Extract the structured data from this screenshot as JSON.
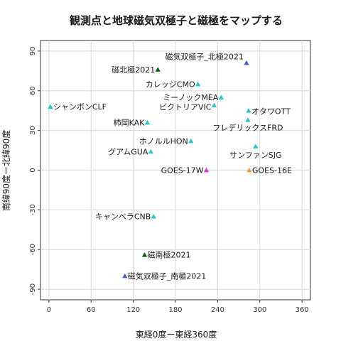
{
  "chart_data": {
    "type": "scatter",
    "title": "観測点と地球磁気双極子と磁極をマップする",
    "xlabel": "東経0度ー東経360度",
    "ylabel": "南緯90度ー北緯90度",
    "xlim": [
      -12,
      372
    ],
    "ylim": [
      -98,
      98
    ],
    "xticks": [
      0,
      60,
      120,
      180,
      240,
      300,
      360
    ],
    "yticks": [
      90,
      60,
      30,
      0,
      -30,
      -60,
      -90
    ],
    "xtick_labels": [
      "0",
      "60",
      "120",
      "180",
      "240",
      "300",
      "360"
    ],
    "ytick_labels": [
      "90",
      "60",
      "30",
      "0",
      "-30",
      "-60",
      "-90"
    ],
    "grid": true,
    "colors": {
      "station": "#22c8c8",
      "geo_pole": "#006400",
      "dipole_pole": "#3a5fcd",
      "goes_east": "#f0a030",
      "goes_west": "#e030e0",
      "grid": "#d8d8d8",
      "panel_border": "#333333"
    },
    "points": [
      {
        "x": 281,
        "y": 81,
        "label": "磁気双極子_北極2021",
        "kind": "dipole_pole",
        "anchor": "end",
        "dx": -4,
        "dy": -5
      },
      {
        "x": 155,
        "y": 76,
        "label": "磁北極2021",
        "kind": "geo_pole",
        "anchor": "end",
        "dx": -4,
        "dy": 4
      },
      {
        "x": 212,
        "y": 65,
        "label": "カレッジCMO",
        "kind": "station",
        "anchor": "end",
        "dx": -4,
        "dy": 4
      },
      {
        "x": 245,
        "y": 55,
        "label": "ミーノックMEA",
        "kind": "station",
        "anchor": "end",
        "dx": -4,
        "dy": 4
      },
      {
        "x": 235,
        "y": 49,
        "label": "ビクトリアVIC",
        "kind": "station",
        "anchor": "end",
        "dx": -4,
        "dy": 6
      },
      {
        "x": 284,
        "y": 45,
        "label": "オタワOTT",
        "kind": "station",
        "anchor": "start",
        "dx": 4,
        "dy": 5
      },
      {
        "x": 2,
        "y": 48,
        "label": "シャンボンCLF",
        "kind": "station",
        "anchor": "start",
        "dx": 4,
        "dy": 4
      },
      {
        "x": 140,
        "y": 36,
        "label": "柿岡KAK",
        "kind": "station",
        "anchor": "end",
        "dx": -4,
        "dy": 4
      },
      {
        "x": 283,
        "y": 38,
        "label": "フレデリックスFRD",
        "kind": "station",
        "anchor": "middle",
        "dx": 0,
        "dy": 15
      },
      {
        "x": 202,
        "y": 22,
        "label": "ホノルルHON",
        "kind": "station",
        "anchor": "end",
        "dx": -4,
        "dy": 4
      },
      {
        "x": 294,
        "y": 18,
        "label": "サンファンSJG",
        "kind": "station",
        "anchor": "middle",
        "dx": 0,
        "dy": 16
      },
      {
        "x": 145,
        "y": 14,
        "label": "グアムGUA",
        "kind": "station",
        "anchor": "end",
        "dx": -4,
        "dy": 4
      },
      {
        "x": 285,
        "y": 0,
        "label": "GOES-16E",
        "kind": "goes_east",
        "anchor": "start",
        "dx": 4,
        "dy": 4
      },
      {
        "x": 224,
        "y": 0,
        "label": "GOES-17W",
        "kind": "goes_west",
        "anchor": "end",
        "dx": -4,
        "dy": 4
      },
      {
        "x": 149,
        "y": -35,
        "label": "キャンベラCNB",
        "kind": "station",
        "anchor": "end",
        "dx": -4,
        "dy": 4
      },
      {
        "x": 136,
        "y": -64,
        "label": "磁南極2021",
        "kind": "geo_pole",
        "anchor": "start",
        "dx": 4,
        "dy": 4
      },
      {
        "x": 108,
        "y": -80,
        "label": "磁気双極子_南極2021",
        "kind": "dipole_pole",
        "anchor": "start",
        "dx": 4,
        "dy": 4
      }
    ]
  }
}
